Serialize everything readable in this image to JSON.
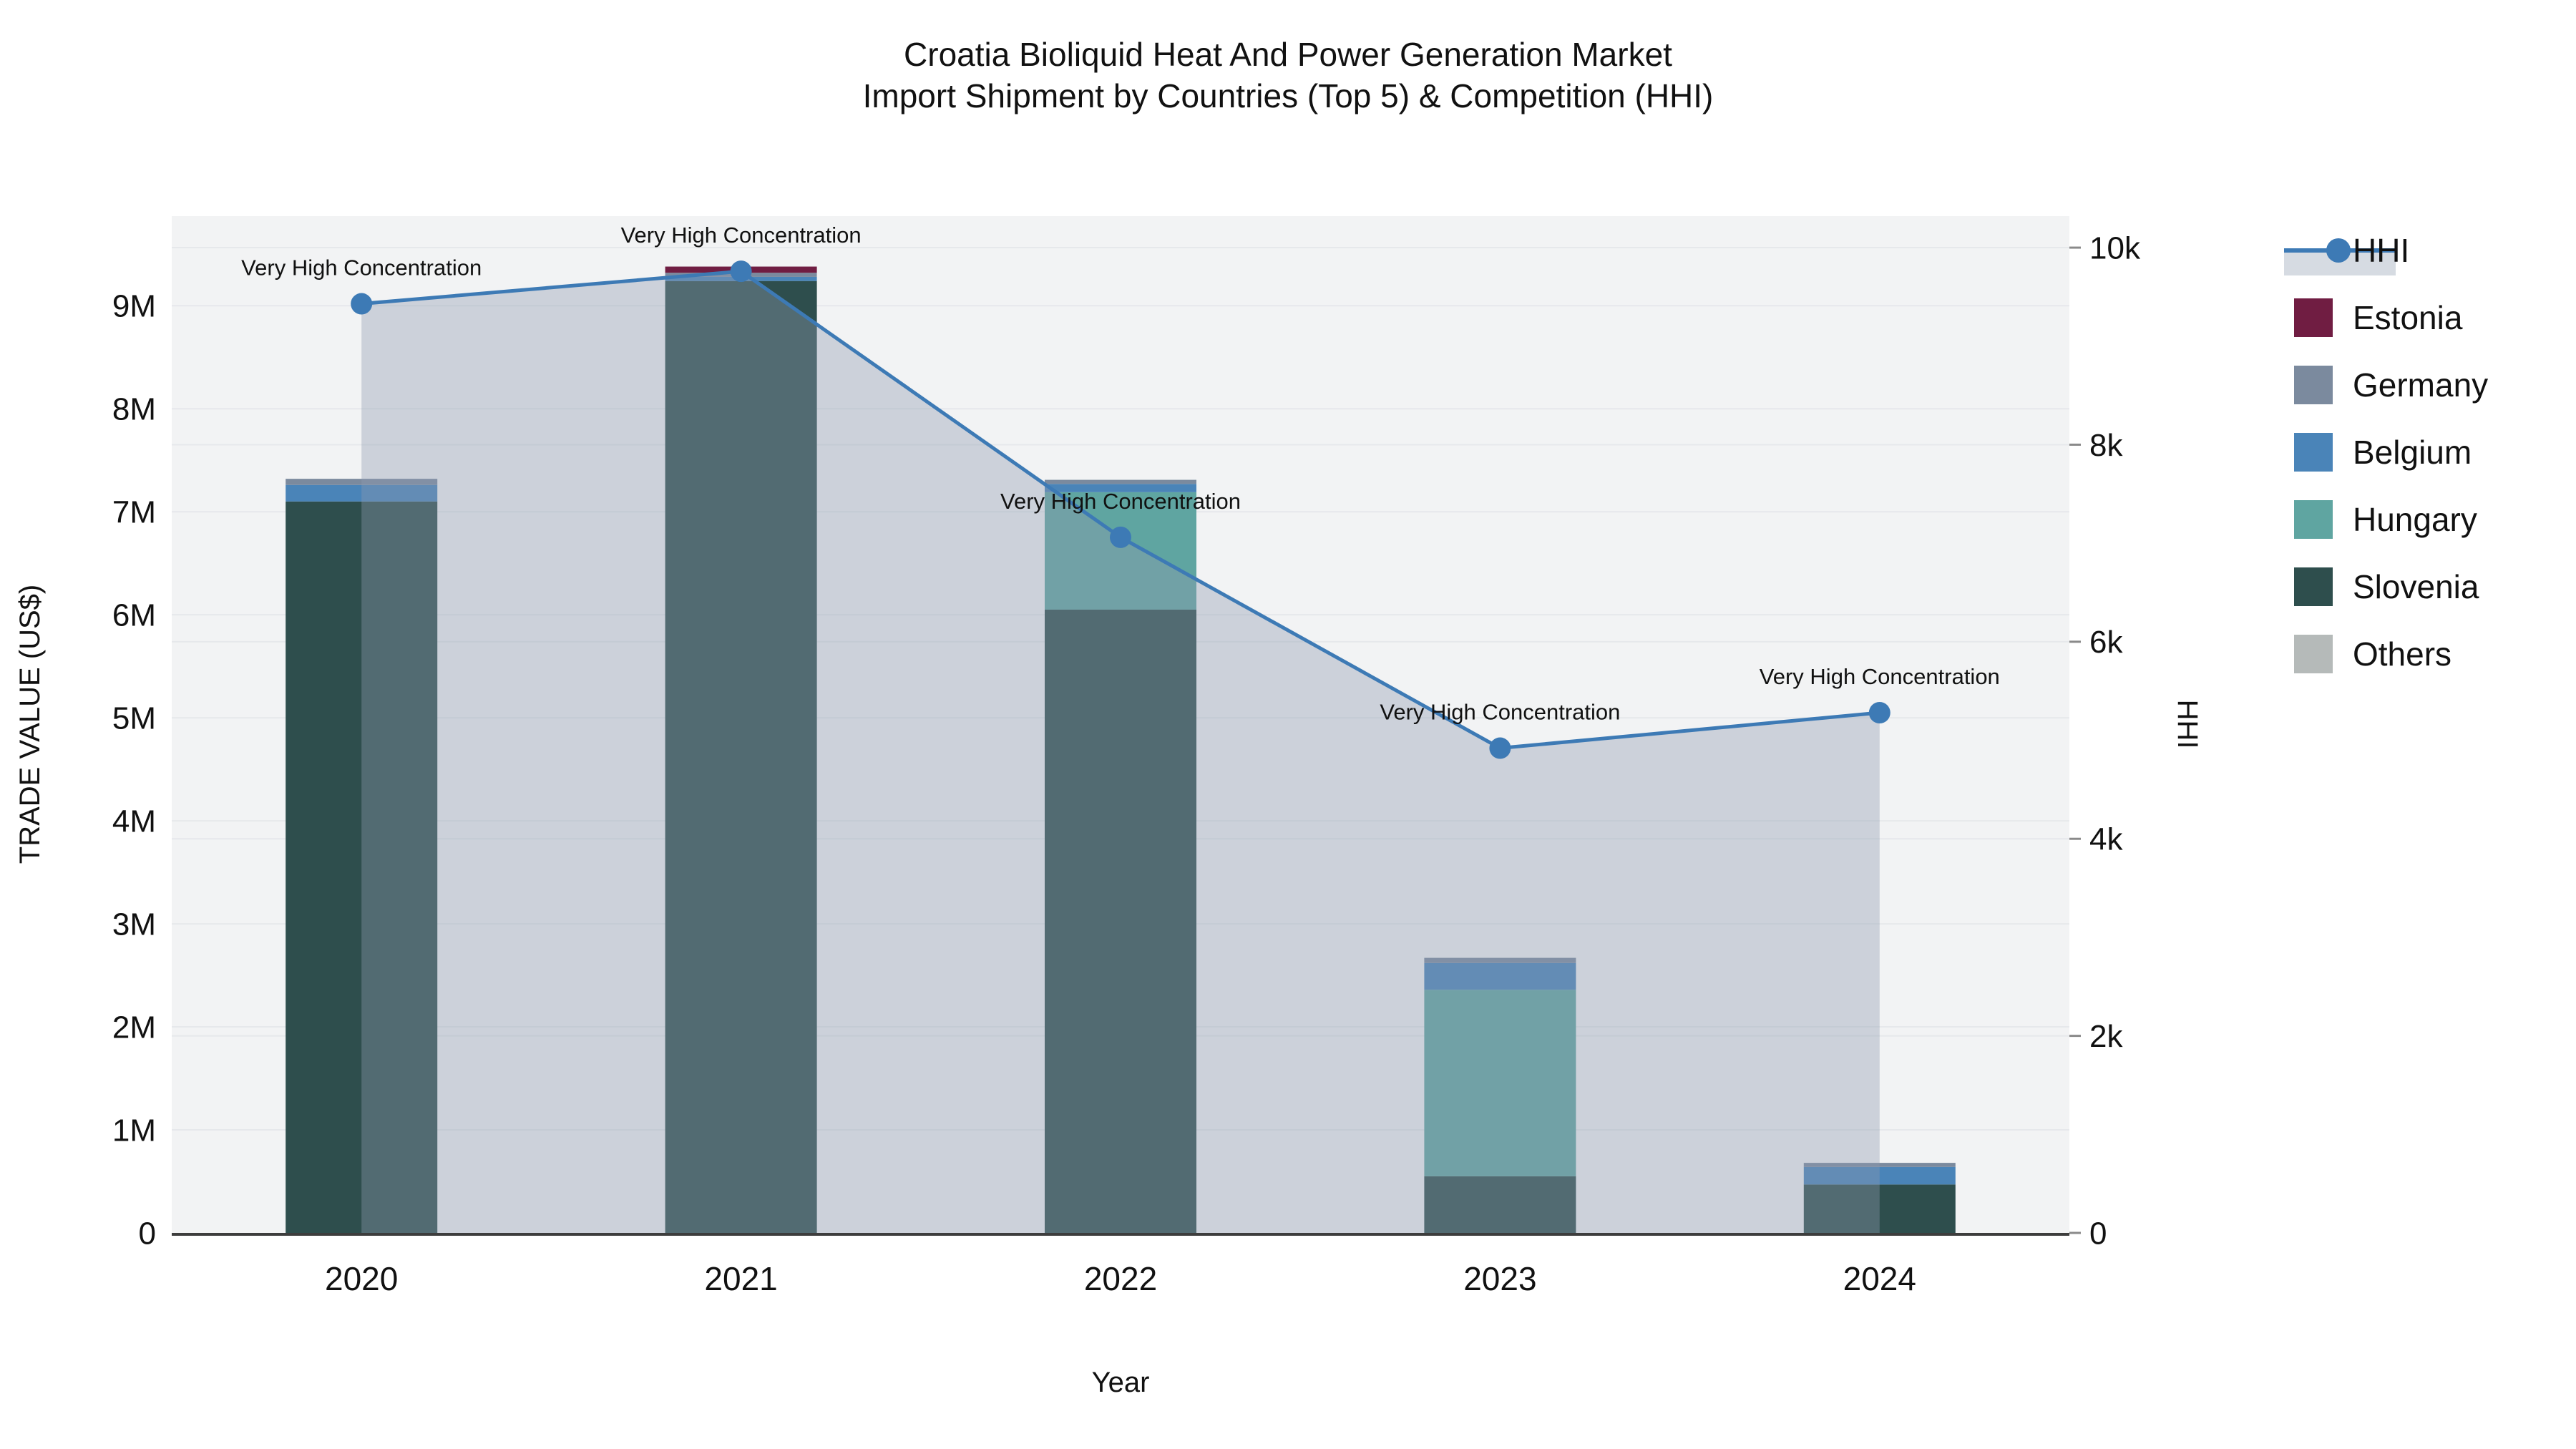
{
  "title": {
    "line1": "Croatia Bioliquid Heat And Power Generation Market",
    "line2": "Import Shipment by Countries (Top 5) & Competition (HHI)"
  },
  "axes": {
    "x": {
      "title": "Year",
      "categories": [
        "2020",
        "2021",
        "2022",
        "2023",
        "2024"
      ]
    },
    "y_left": {
      "title": "TRADE VALUE (US$)",
      "tick_labels": [
        "0",
        "1M",
        "2M",
        "3M",
        "4M",
        "5M",
        "6M",
        "7M",
        "8M",
        "9M"
      ],
      "tick_values": [
        0,
        1000000,
        2000000,
        3000000,
        4000000,
        5000000,
        6000000,
        7000000,
        8000000,
        9000000
      ]
    },
    "y_right": {
      "title": "HHI",
      "tick_labels": [
        "0",
        "2k",
        "4k",
        "6k",
        "8k",
        "10k"
      ],
      "tick_values": [
        0,
        2000,
        4000,
        6000,
        8000,
        10000
      ]
    }
  },
  "legend": {
    "items": [
      {
        "label": "HHI",
        "type": "line",
        "color": "#3d7ab5",
        "band_color": "#d6dbe2"
      },
      {
        "label": "Estonia",
        "type": "swatch",
        "color": "#701d42"
      },
      {
        "label": "Germany",
        "type": "swatch",
        "color": "#7b8a9e"
      },
      {
        "label": "Belgium",
        "type": "swatch",
        "color": "#4a84b8"
      },
      {
        "label": "Hungary",
        "type": "swatch",
        "color": "#5fa5a1"
      },
      {
        "label": "Slovenia",
        "type": "swatch",
        "color": "#2e4e4d"
      },
      {
        "label": "Others",
        "type": "swatch",
        "color": "#b5bab9"
      }
    ]
  },
  "colors": {
    "plot_background": "#f2f3f4",
    "gridline": "#e6e8eb",
    "axis_line": "#3d3d3d",
    "hhi_line": "#3d7ab5",
    "hhi_area_fill": "rgba(142,156,176,0.38)"
  },
  "chart_data": {
    "type": "combo-stacked-bar-line",
    "categories": [
      "2020",
      "2021",
      "2022",
      "2023",
      "2024"
    ],
    "bar_axis": "left",
    "bar_unit": "US$",
    "bar_series": [
      {
        "name": "Slovenia",
        "color": "#2e4e4d",
        "values": [
          7100000,
          9240000,
          6050000,
          550000,
          470000
        ]
      },
      {
        "name": "Hungary",
        "color": "#5fa5a1",
        "values": [
          0,
          0,
          1140000,
          1810000,
          0
        ]
      },
      {
        "name": "Belgium",
        "color": "#4a84b8",
        "values": [
          160000,
          40000,
          80000,
          260000,
          170000
        ]
      },
      {
        "name": "Germany",
        "color": "#7b8a9e",
        "values": [
          60000,
          40000,
          40000,
          50000,
          40000
        ]
      },
      {
        "name": "Estonia",
        "color": "#701d42",
        "values": [
          0,
          60000,
          0,
          0,
          0
        ]
      },
      {
        "name": "Others",
        "color": "#b5bab9",
        "values": [
          0,
          0,
          0,
          0,
          0
        ]
      }
    ],
    "line_series": {
      "name": "HHI",
      "axis": "right",
      "color": "#3d7ab5",
      "fill": "rgba(142,156,176,0.38)",
      "values": [
        9430,
        9760,
        7060,
        4920,
        5280
      ]
    },
    "annotations": [
      {
        "text": "Very High Concentration",
        "category": "2020"
      },
      {
        "text": "Very High Concentration",
        "category": "2021"
      },
      {
        "text": "Very High Concentration",
        "category": "2022"
      },
      {
        "text": "Very High Concentration",
        "category": "2023"
      },
      {
        "text": "Very High Concentration",
        "category": "2024"
      }
    ],
    "ylim_left": [
      0,
      9870000
    ],
    "ylim_right": [
      0,
      10320
    ],
    "grid": true,
    "legend_position": "right"
  }
}
